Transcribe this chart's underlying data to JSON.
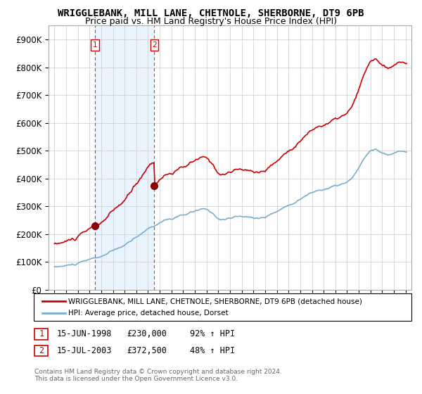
{
  "title": "WRIGGLEBANK, MILL LANE, CHETNOLE, SHERBORNE, DT9 6PB",
  "subtitle": "Price paid vs. HM Land Registry's House Price Index (HPI)",
  "legend_line1": "WRIGGLEBANK, MILL LANE, CHETNOLE, SHERBORNE, DT9 6PB (detached house)",
  "legend_line2": "HPI: Average price, detached house, Dorset",
  "note": "Contains HM Land Registry data © Crown copyright and database right 2024.\nThis data is licensed under the Open Government Licence v3.0.",
  "sale1_date": "15-JUN-1998",
  "sale1_price": "£230,000",
  "sale1_hpi": "92% ↑ HPI",
  "sale2_date": "15-JUL-2003",
  "sale2_price": "£372,500",
  "sale2_hpi": "48% ↑ HPI",
  "sale1_x": 1998.45,
  "sale1_y": 230000,
  "sale2_x": 2003.54,
  "sale2_y": 372500,
  "ylim": [
    0,
    950000
  ],
  "xlim": [
    1994.5,
    2025.5
  ],
  "red_color": "#cc0000",
  "blue_color": "#7aadcf",
  "shade_color": "#ddeeff",
  "background_color": "#ffffff",
  "grid_color": "#cccccc",
  "title_fontsize": 10,
  "subtitle_fontsize": 9
}
